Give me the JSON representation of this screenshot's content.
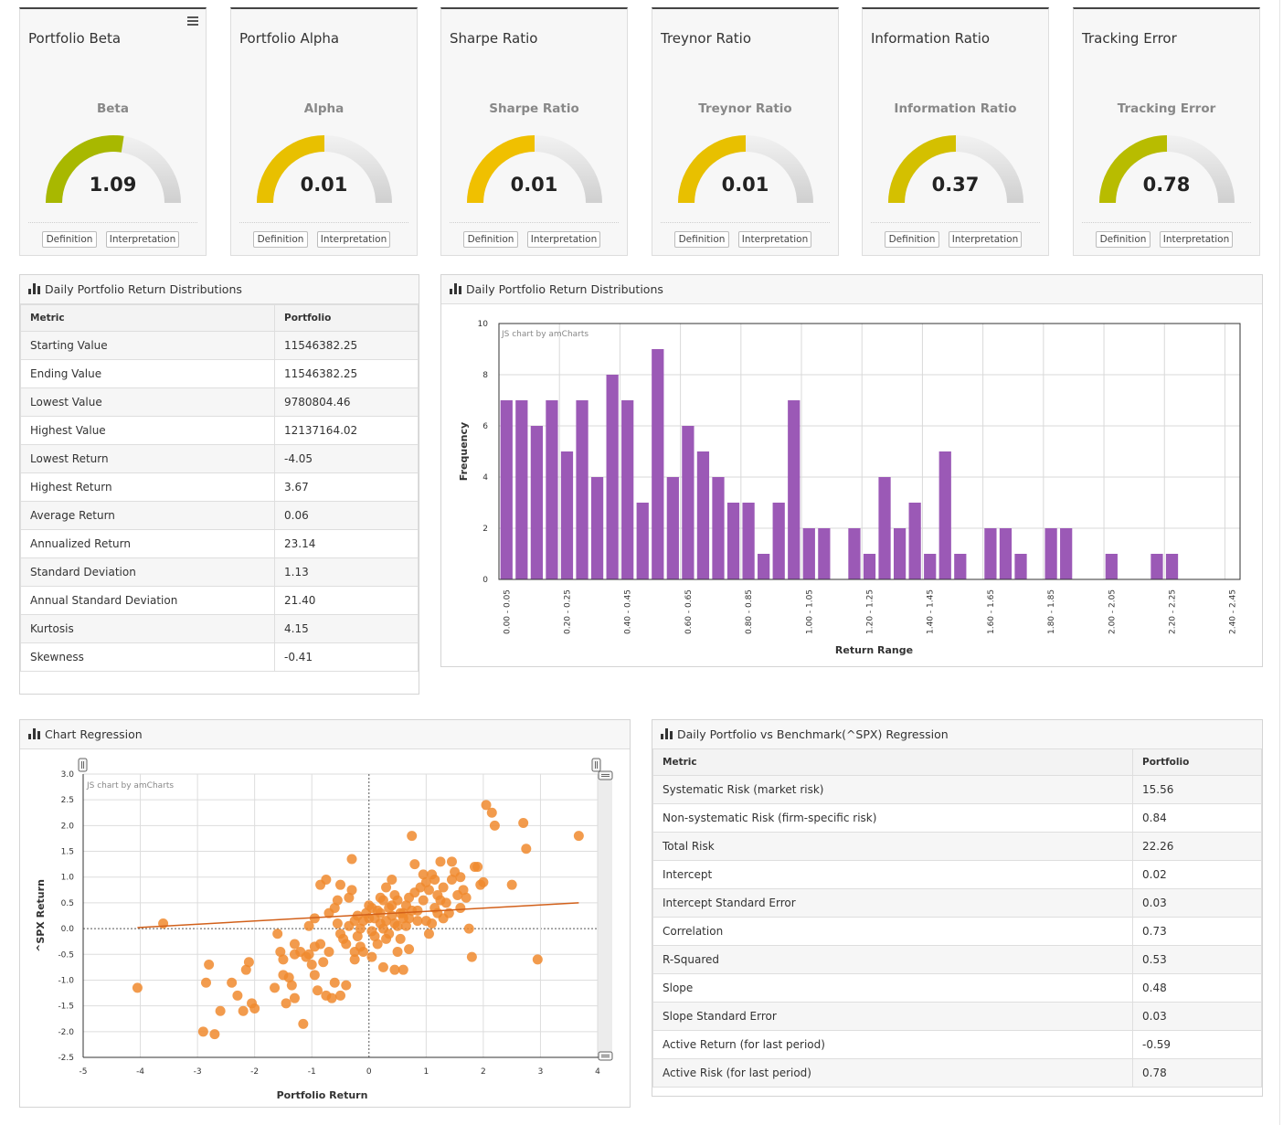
{
  "gauges": [
    {
      "title": "Portfolio Beta",
      "label": "Beta",
      "value": "1.09",
      "fill_fraction": 0.55,
      "color": "#a8b800",
      "definition_label": "Definition",
      "interpretation_label": "Interpretation"
    },
    {
      "title": "Portfolio Alpha",
      "label": "Alpha",
      "value": "0.01",
      "fill_fraction": 0.5,
      "color": "#e8c000",
      "definition_label": "Definition",
      "interpretation_label": "Interpretation"
    },
    {
      "title": "Sharpe Ratio",
      "label": "Sharpe Ratio",
      "value": "0.01",
      "fill_fraction": 0.5,
      "color": "#f0c000",
      "definition_label": "Definition",
      "interpretation_label": "Interpretation"
    },
    {
      "title": "Treynor Ratio",
      "label": "Treynor Ratio",
      "value": "0.01",
      "fill_fraction": 0.5,
      "color": "#e8c000",
      "definition_label": "Definition",
      "interpretation_label": "Interpretation"
    },
    {
      "title": "Information Ratio",
      "label": "Information Ratio",
      "value": "0.37",
      "fill_fraction": 0.5,
      "color": "#d4c000",
      "definition_label": "Definition",
      "interpretation_label": "Interpretation"
    },
    {
      "title": "Tracking Error",
      "label": "Tracking Error",
      "value": "0.78",
      "fill_fraction": 0.5,
      "color": "#b8bc00",
      "definition_label": "Definition",
      "interpretation_label": "Interpretation"
    }
  ],
  "dist_table": {
    "title": "Daily Portfolio Return Distributions",
    "headers": [
      "Metric",
      "Portfolio"
    ],
    "rows": [
      [
        "Starting Value",
        "11546382.25"
      ],
      [
        "Ending Value",
        "11546382.25"
      ],
      [
        "Lowest Value",
        "9780804.46"
      ],
      [
        "Highest Value",
        "12137164.02"
      ],
      [
        "Lowest Return",
        "-4.05"
      ],
      [
        "Highest Return",
        "3.67"
      ],
      [
        "Average Return",
        "0.06"
      ],
      [
        "Annualized Return",
        "23.14"
      ],
      [
        "Standard Deviation",
        "1.13"
      ],
      [
        "Annual Standard Deviation",
        "21.40"
      ],
      [
        "Kurtosis",
        "4.15"
      ],
      [
        "Skewness",
        "-0.41"
      ]
    ]
  },
  "histogram_panel": {
    "title": "Daily Portfolio Return Distributions",
    "credit": "JS chart by amCharts"
  },
  "regression_panel": {
    "title": "Chart Regression",
    "credit": "JS chart by amCharts"
  },
  "regression_table": {
    "title": "Daily Portfolio vs Benchmark(^SPX) Regression",
    "headers": [
      "Metric",
      "Portfolio"
    ],
    "rows": [
      [
        "Systematic Risk (market risk)",
        "15.56"
      ],
      [
        "Non-systematic Risk (firm-specific risk)",
        "0.84"
      ],
      [
        "Total Risk",
        "22.26"
      ],
      [
        "Intercept",
        "0.02"
      ],
      [
        "Intercept Standard Error",
        "0.03"
      ],
      [
        "Correlation",
        "0.73"
      ],
      [
        "R-Squared",
        "0.53"
      ],
      [
        "Slope",
        "0.48"
      ],
      [
        "Slope Standard Error",
        "0.03"
      ],
      [
        "Active Return (for last period)",
        "-0.59"
      ],
      [
        "Active Risk (for last period)",
        "0.78"
      ]
    ]
  },
  "chart_data": [
    {
      "type": "bar",
      "xlabel": "Return Range",
      "ylabel": "Frequency",
      "ylim": [
        0,
        10
      ],
      "yticks": [
        0,
        2,
        4,
        6,
        8,
        10
      ],
      "grid": true,
      "color": "#9b59b6",
      "bin_start": 0.0,
      "bin_width": 0.05,
      "label_every": 4,
      "categories": [
        "0.00 - 0.05",
        "0.05 - 0.10",
        "0.10 - 0.15",
        "0.15 - 0.20",
        "0.20 - 0.25",
        "0.25 - 0.30",
        "0.30 - 0.35",
        "0.35 - 0.40",
        "0.40 - 0.45",
        "0.45 - 0.50",
        "0.50 - 0.55",
        "0.55 - 0.60",
        "0.60 - 0.65",
        "0.65 - 0.70",
        "0.70 - 0.75",
        "0.75 - 0.80",
        "0.80 - 0.85",
        "0.85 - 0.90",
        "0.90 - 0.95",
        "0.95 - 1.00",
        "1.00 - 1.05",
        "1.05 - 1.10",
        "1.10 - 1.15",
        "1.15 - 1.20",
        "1.20 - 1.25",
        "1.25 - 1.30",
        "1.30 - 1.35",
        "1.35 - 1.40",
        "1.40 - 1.45",
        "1.45 - 1.50",
        "1.50 - 1.55",
        "1.55 - 1.60",
        "1.60 - 1.65",
        "1.65 - 1.70",
        "1.70 - 1.75",
        "1.75 - 1.80",
        "1.80 - 1.85",
        "1.85 - 1.90",
        "1.90 - 1.95",
        "1.95 - 2.00",
        "2.00 - 2.05",
        "2.05 - 2.10",
        "2.10 - 2.15",
        "2.15 - 2.20",
        "2.20 - 2.25",
        "2.25 - 2.30",
        "2.30 - 2.35",
        "2.35 - 2.40",
        "2.40 - 2.45"
      ],
      "values": [
        7,
        7,
        6,
        7,
        5,
        7,
        4,
        8,
        7,
        3,
        9,
        4,
        6,
        5,
        4,
        3,
        3,
        1,
        3,
        7,
        2,
        2,
        0,
        2,
        1,
        4,
        2,
        3,
        1,
        5,
        1,
        0,
        2,
        2,
        1,
        0,
        2,
        2,
        0,
        0,
        1,
        0,
        0,
        1,
        1,
        0,
        0,
        0,
        0
      ]
    },
    {
      "type": "scatter",
      "xlabel": "Portfolio Return",
      "ylabel": "^SPX Return",
      "xlim": [
        -5,
        4
      ],
      "ylim": [
        -2.5,
        3.0
      ],
      "xticks": [
        -5,
        -4,
        -3,
        -2,
        -1,
        0,
        1,
        2,
        3,
        4
      ],
      "yticks": [
        -2.5,
        -2.0,
        -1.5,
        -1.0,
        -0.5,
        0.0,
        0.5,
        1.0,
        1.5,
        2.0,
        2.5,
        3.0
      ],
      "grid": true,
      "point_color": "#f0892e",
      "line_color": "#d2601a",
      "trend_line": [
        [
          -4.05,
          0.02
        ],
        [
          3.67,
          0.5
        ]
      ],
      "points": [
        [
          -4.05,
          -1.15
        ],
        [
          -3.6,
          0.1
        ],
        [
          -2.8,
          -0.7
        ],
        [
          -2.85,
          -1.05
        ],
        [
          -2.9,
          -2.0
        ],
        [
          -2.7,
          -2.05
        ],
        [
          -2.6,
          -1.6
        ],
        [
          -2.4,
          -1.05
        ],
        [
          -2.3,
          -1.3
        ],
        [
          -2.2,
          -1.6
        ],
        [
          -2.15,
          -0.8
        ],
        [
          -2.1,
          -0.65
        ],
        [
          -2.05,
          -1.45
        ],
        [
          -2.0,
          -1.55
        ],
        [
          -1.65,
          -1.15
        ],
        [
          -1.5,
          -0.9
        ],
        [
          -1.45,
          -1.45
        ],
        [
          -1.3,
          -1.35
        ],
        [
          -1.15,
          -1.85
        ],
        [
          -1.6,
          -0.1
        ],
        [
          -1.55,
          -0.45
        ],
        [
          -1.5,
          -0.6
        ],
        [
          -1.4,
          -0.95
        ],
        [
          -1.35,
          -1.1
        ],
        [
          -1.3,
          -0.3
        ],
        [
          -1.2,
          -0.45
        ],
        [
          -1.1,
          -0.55
        ],
        [
          -1.0,
          -0.7
        ],
        [
          -0.95,
          -0.9
        ],
        [
          -0.9,
          -1.2
        ],
        [
          -1.05,
          0.05
        ],
        [
          -0.95,
          0.2
        ],
        [
          -0.85,
          -0.3
        ],
        [
          -0.8,
          -0.65
        ],
        [
          -0.7,
          -0.45
        ],
        [
          -0.6,
          -1.05
        ],
        [
          -0.75,
          -1.3
        ],
        [
          -0.65,
          -1.35
        ],
        [
          -0.5,
          -1.3
        ],
        [
          -0.4,
          -1.1
        ],
        [
          -0.7,
          0.3
        ],
        [
          -0.6,
          0.4
        ],
        [
          -0.55,
          0.1
        ],
        [
          -0.5,
          -0.1
        ],
        [
          -0.45,
          -0.2
        ],
        [
          -0.4,
          -0.3
        ],
        [
          -0.35,
          0.6
        ],
        [
          -0.3,
          0.75
        ],
        [
          -0.25,
          -0.45
        ],
        [
          -0.2,
          -0.15
        ],
        [
          -0.15,
          0.0
        ],
        [
          -0.1,
          0.15
        ],
        [
          -0.05,
          0.3
        ],
        [
          0.0,
          0.45
        ],
        [
          0.05,
          -0.05
        ],
        [
          0.1,
          0.2
        ],
        [
          0.15,
          0.35
        ],
        [
          0.2,
          0.1
        ],
        [
          0.25,
          0.0
        ],
        [
          0.3,
          -0.2
        ],
        [
          0.35,
          0.4
        ],
        [
          0.4,
          0.25
        ],
        [
          0.45,
          0.1
        ],
        [
          0.5,
          0.55
        ],
        [
          0.55,
          0.3
        ],
        [
          0.6,
          0.2
        ],
        [
          0.65,
          0.45
        ],
        [
          0.7,
          0.6
        ],
        [
          0.75,
          0.35
        ],
        [
          0.8,
          0.7
        ],
        [
          0.85,
          0.15
        ],
        [
          0.9,
          0.8
        ],
        [
          0.95,
          1.05
        ],
        [
          1.0,
          0.9
        ],
        [
          1.05,
          0.75
        ],
        [
          1.1,
          1.05
        ],
        [
          1.15,
          0.95
        ],
        [
          1.2,
          0.65
        ],
        [
          1.25,
          0.55
        ],
        [
          1.3,
          0.8
        ],
        [
          1.35,
          0.5
        ],
        [
          1.4,
          0.3
        ],
        [
          1.45,
          0.95
        ],
        [
          1.5,
          1.1
        ],
        [
          1.55,
          0.65
        ],
        [
          1.6,
          0.4
        ],
        [
          1.65,
          0.75
        ],
        [
          1.7,
          0.6
        ],
        [
          1.75,
          0.0
        ],
        [
          1.8,
          -0.55
        ],
        [
          1.85,
          1.2
        ],
        [
          1.9,
          1.2
        ],
        [
          1.95,
          0.85
        ],
        [
          2.0,
          0.9
        ],
        [
          2.05,
          2.4
        ],
        [
          2.15,
          2.25
        ],
        [
          2.2,
          2.0
        ],
        [
          2.5,
          0.85
        ],
        [
          2.7,
          2.05
        ],
        [
          2.75,
          1.55
        ],
        [
          2.95,
          -0.6
        ],
        [
          3.67,
          1.8
        ],
        [
          -0.25,
          0.15
        ],
        [
          -0.15,
          -0.35
        ],
        [
          0.05,
          0.4
        ],
        [
          0.15,
          -0.3
        ],
        [
          0.25,
          0.55
        ],
        [
          0.35,
          -0.1
        ],
        [
          0.45,
          0.65
        ],
        [
          0.55,
          -0.2
        ],
        [
          0.65,
          0.05
        ],
        [
          -0.55,
          0.55
        ],
        [
          -0.35,
          0.05
        ],
        [
          0.0,
          0.2
        ],
        [
          0.2,
          0.3
        ],
        [
          0.3,
          0.15
        ],
        [
          0.4,
          0.45
        ],
        [
          0.5,
          0.05
        ],
        [
          0.6,
          0.3
        ],
        [
          0.7,
          0.2
        ],
        [
          0.85,
          0.35
        ],
        [
          1.0,
          0.15
        ],
        [
          1.15,
          0.4
        ],
        [
          1.3,
          0.2
        ],
        [
          -0.2,
          0.25
        ],
        [
          0.1,
          -0.15
        ],
        [
          0.2,
          0.6
        ],
        [
          0.3,
          0.8
        ],
        [
          0.4,
          0.95
        ],
        [
          0.5,
          -0.45
        ],
        [
          0.6,
          -0.8
        ],
        [
          0.8,
          1.25
        ],
        [
          0.95,
          0.55
        ],
        [
          1.25,
          1.3
        ],
        [
          1.45,
          1.3
        ],
        [
          1.6,
          1.0
        ],
        [
          -0.85,
          0.85
        ],
        [
          -0.75,
          0.95
        ],
        [
          -0.95,
          -0.35
        ],
        [
          -1.05,
          -0.5
        ],
        [
          -0.5,
          0.85
        ],
        [
          -0.25,
          -0.6
        ],
        [
          -0.1,
          -0.45
        ],
        [
          0.05,
          -0.55
        ],
        [
          0.25,
          -0.75
        ],
        [
          0.45,
          -0.8
        ],
        [
          0.7,
          -0.4
        ],
        [
          1.05,
          -0.1
        ],
        [
          1.1,
          0.1
        ],
        [
          1.2,
          0.3
        ],
        [
          -0.3,
          1.35
        ],
        [
          0.75,
          1.8
        ],
        [
          -1.3,
          -0.5
        ]
      ]
    }
  ]
}
